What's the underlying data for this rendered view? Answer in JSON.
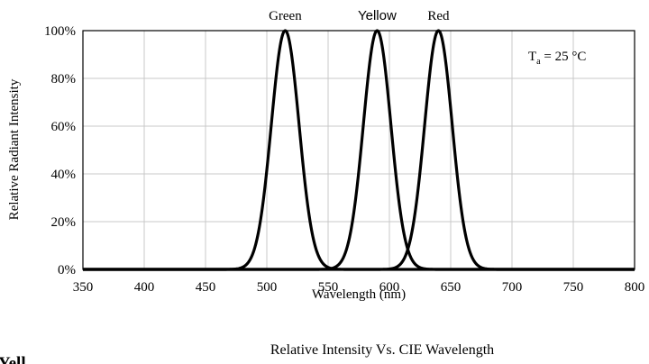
{
  "chart_data": {
    "type": "line",
    "title": "Relative Intensity Vs. CIE Wavelength",
    "xlabel": "Wavelength (nm)",
    "ylabel": "Relative Radiant Intensity",
    "xlim": [
      350,
      800
    ],
    "ylim": [
      0,
      100
    ],
    "x_ticks": [
      350,
      400,
      450,
      500,
      550,
      600,
      650,
      700,
      750,
      800
    ],
    "y_ticks": [
      0,
      20,
      40,
      60,
      80,
      100
    ],
    "y_tick_labels": [
      "0%",
      "20%",
      "40%",
      "60%",
      "80%",
      "100%"
    ],
    "grid": true,
    "annotation": {
      "base": "T",
      "subscript": "a",
      "rest": " = 25 °C"
    },
    "series": [
      {
        "name": "Green",
        "peak_nm": 515,
        "x": [
          490,
          500,
          505,
          510,
          515,
          520,
          525,
          530,
          540
        ],
        "y": [
          2,
          35,
          68,
          92,
          100,
          92,
          68,
          35,
          2
        ]
      },
      {
        "name": "Yellow",
        "peak_nm": 590,
        "x": [
          566,
          576,
          580,
          585,
          590,
          595,
          600,
          604,
          614
        ],
        "y": [
          2,
          38,
          68,
          92,
          100,
          92,
          68,
          38,
          2
        ]
      },
      {
        "name": "Red",
        "peak_nm": 640,
        "x": [
          616,
          626,
          630,
          635,
          640,
          645,
          650,
          654,
          664
        ],
        "y": [
          2,
          38,
          68,
          92,
          100,
          92,
          68,
          38,
          2
        ]
      }
    ]
  },
  "cut_text": "Yell"
}
